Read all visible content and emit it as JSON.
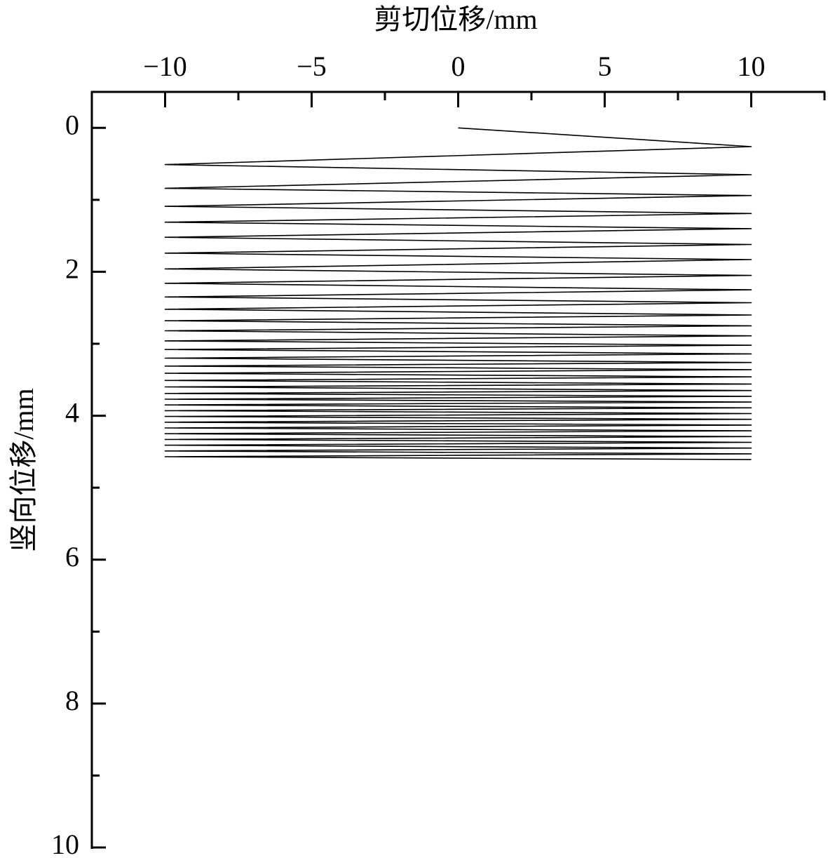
{
  "chart_data": {
    "type": "line",
    "xlabel": "剪切位移/mm",
    "ylabel": "竖向位移/mm",
    "x": [
      0,
      10,
      -10,
      10,
      -10,
      10,
      -10,
      10,
      -10,
      10,
      -10,
      10,
      -10,
      10,
      -10,
      10,
      -10,
      10,
      -10,
      10,
      -10,
      10,
      -10,
      10,
      -10,
      10,
      -10,
      10,
      -10,
      10,
      -10,
      10,
      -10,
      10,
      -10,
      10,
      -10,
      10,
      -10,
      10,
      -10,
      10,
      -10,
      10,
      -10,
      10,
      -10,
      10,
      -10,
      10,
      -10,
      10,
      -10,
      10,
      -10,
      10,
      -10,
      10,
      -10,
      10,
      -10,
      10,
      -10,
      10
    ],
    "values": [
      0,
      0.26,
      0.51,
      0.65,
      0.84,
      0.94,
      1.09,
      1.19,
      1.31,
      1.4,
      1.52,
      1.62,
      1.74,
      1.83,
      1.96,
      2.05,
      2.16,
      2.25,
      2.35,
      2.43,
      2.52,
      2.6,
      2.68,
      2.75,
      2.82,
      2.89,
      2.96,
      3.02,
      3.08,
      3.14,
      3.2,
      3.26,
      3.31,
      3.36,
      3.41,
      3.46,
      3.51,
      3.56,
      3.6,
      3.65,
      3.69,
      3.73,
      3.77,
      3.81,
      3.85,
      3.89,
      3.93,
      3.97,
      4.01,
      4.05,
      4.09,
      4.13,
      4.17,
      4.21,
      4.25,
      4.29,
      4.33,
      4.37,
      4.41,
      4.45,
      4.49,
      4.53,
      4.57,
      4.61
    ],
    "color": "#000000",
    "xlim": [
      -12.5,
      12.5
    ],
    "xticks": [
      {
        "value": -10,
        "label": "−10"
      },
      {
        "value": -5,
        "label": "−5"
      },
      0,
      5,
      10
    ],
    "xminorticks": [
      -7.5,
      -2.5,
      2.5,
      7.5,
      12.5
    ],
    "ylim": [
      -0.5,
      10
    ],
    "y_inverted": true,
    "yticks": [
      0,
      2,
      4,
      6,
      8,
      10
    ],
    "yminorticks": [
      1,
      3,
      5,
      7,
      9
    ]
  }
}
